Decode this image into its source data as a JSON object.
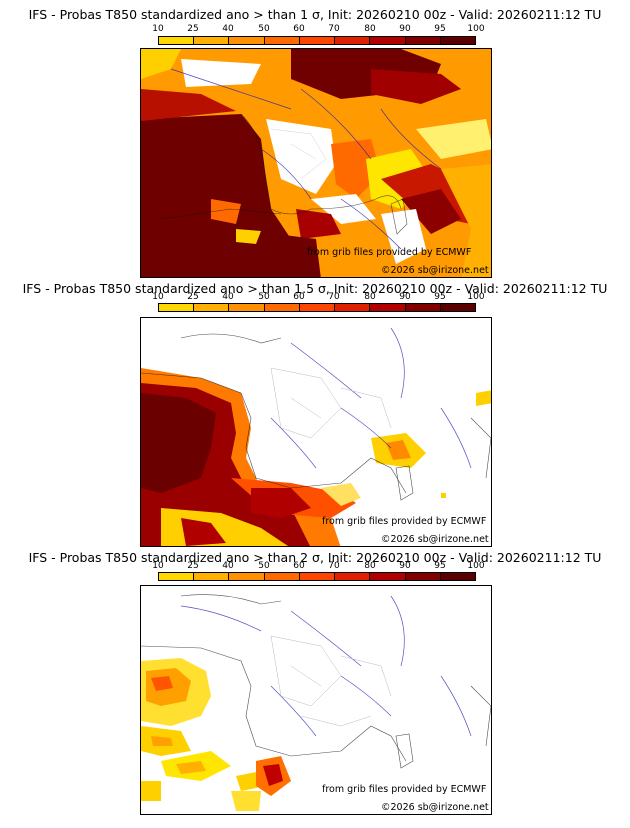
{
  "colorbar": {
    "labels": [
      "10",
      "25",
      "40",
      "50",
      "60",
      "70",
      "80",
      "90",
      "95",
      "100"
    ],
    "colors": [
      "#ffff00",
      "#ffd700",
      "#ffb000",
      "#ff9000",
      "#ff6a00",
      "#ff4500",
      "#e02000",
      "#b00000",
      "#800000",
      "#5a0000"
    ]
  },
  "panels": [
    {
      "title": "IFS - Probas T850  standardized ano > than 1 σ, Init: 20260210 00z - Valid: 20260211:12 TU",
      "credit_source": "from grib files provided by ECMWF",
      "credit_copyright": "©2026 sb@irizone.net"
    },
    {
      "title": "IFS - Probas T850  standardized ano > than 1.5 σ, Init: 20260210 00z - Valid: 20260211:12 TU",
      "credit_source": "from grib files provided by ECMWF",
      "credit_copyright": "©2026 sb@irizone.net"
    },
    {
      "title": "IFS - Probas T850  standardized ano > than 2 σ, Init: 20260210 00z - Valid: 20260211:12 TU",
      "credit_source": "from grib files provided by ECMWF",
      "credit_copyright": "©2026 sb@irizone.net"
    }
  ]
}
